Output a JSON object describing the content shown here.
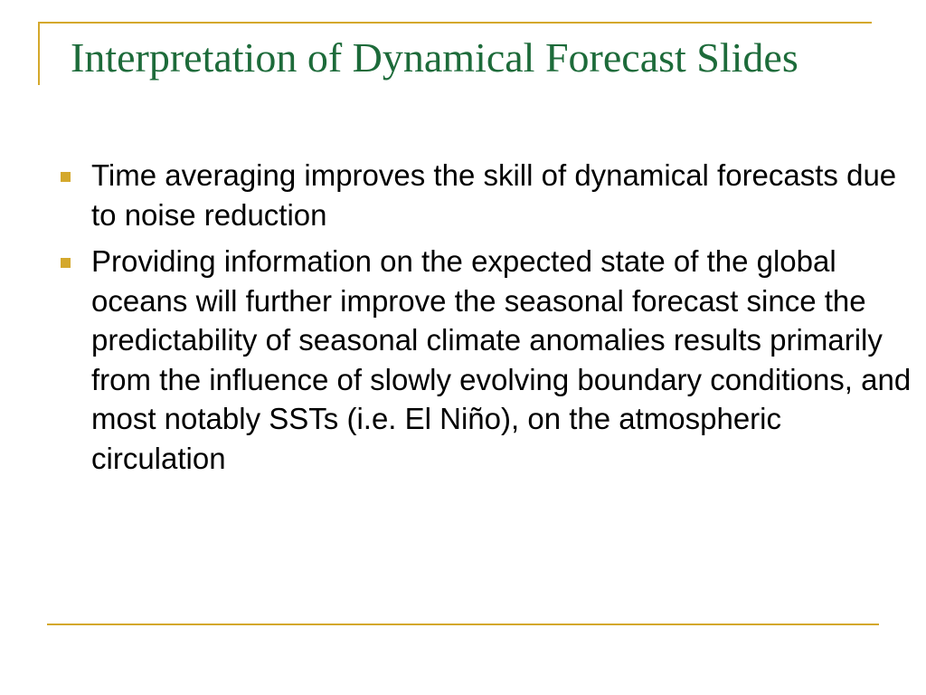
{
  "slide": {
    "title": "Interpretation of Dynamical Forecast Slides",
    "bullets": [
      "Time averaging improves the skill of dynamical forecasts due to noise reduction",
      "Providing information on the expected state of the global oceans will further improve the seasonal forecast since the predictability of seasonal climate anomalies results primarily from the influence of slowly evolving boundary conditions, and most notably SSTs (i.e. El Niño), on the atmospheric circulation"
    ]
  },
  "colors": {
    "title": "#1d6b3a",
    "accent": "#d4a82c",
    "text": "#000000",
    "background": "#ffffff"
  },
  "icons": {
    "bullet": "square-bullet-icon"
  }
}
